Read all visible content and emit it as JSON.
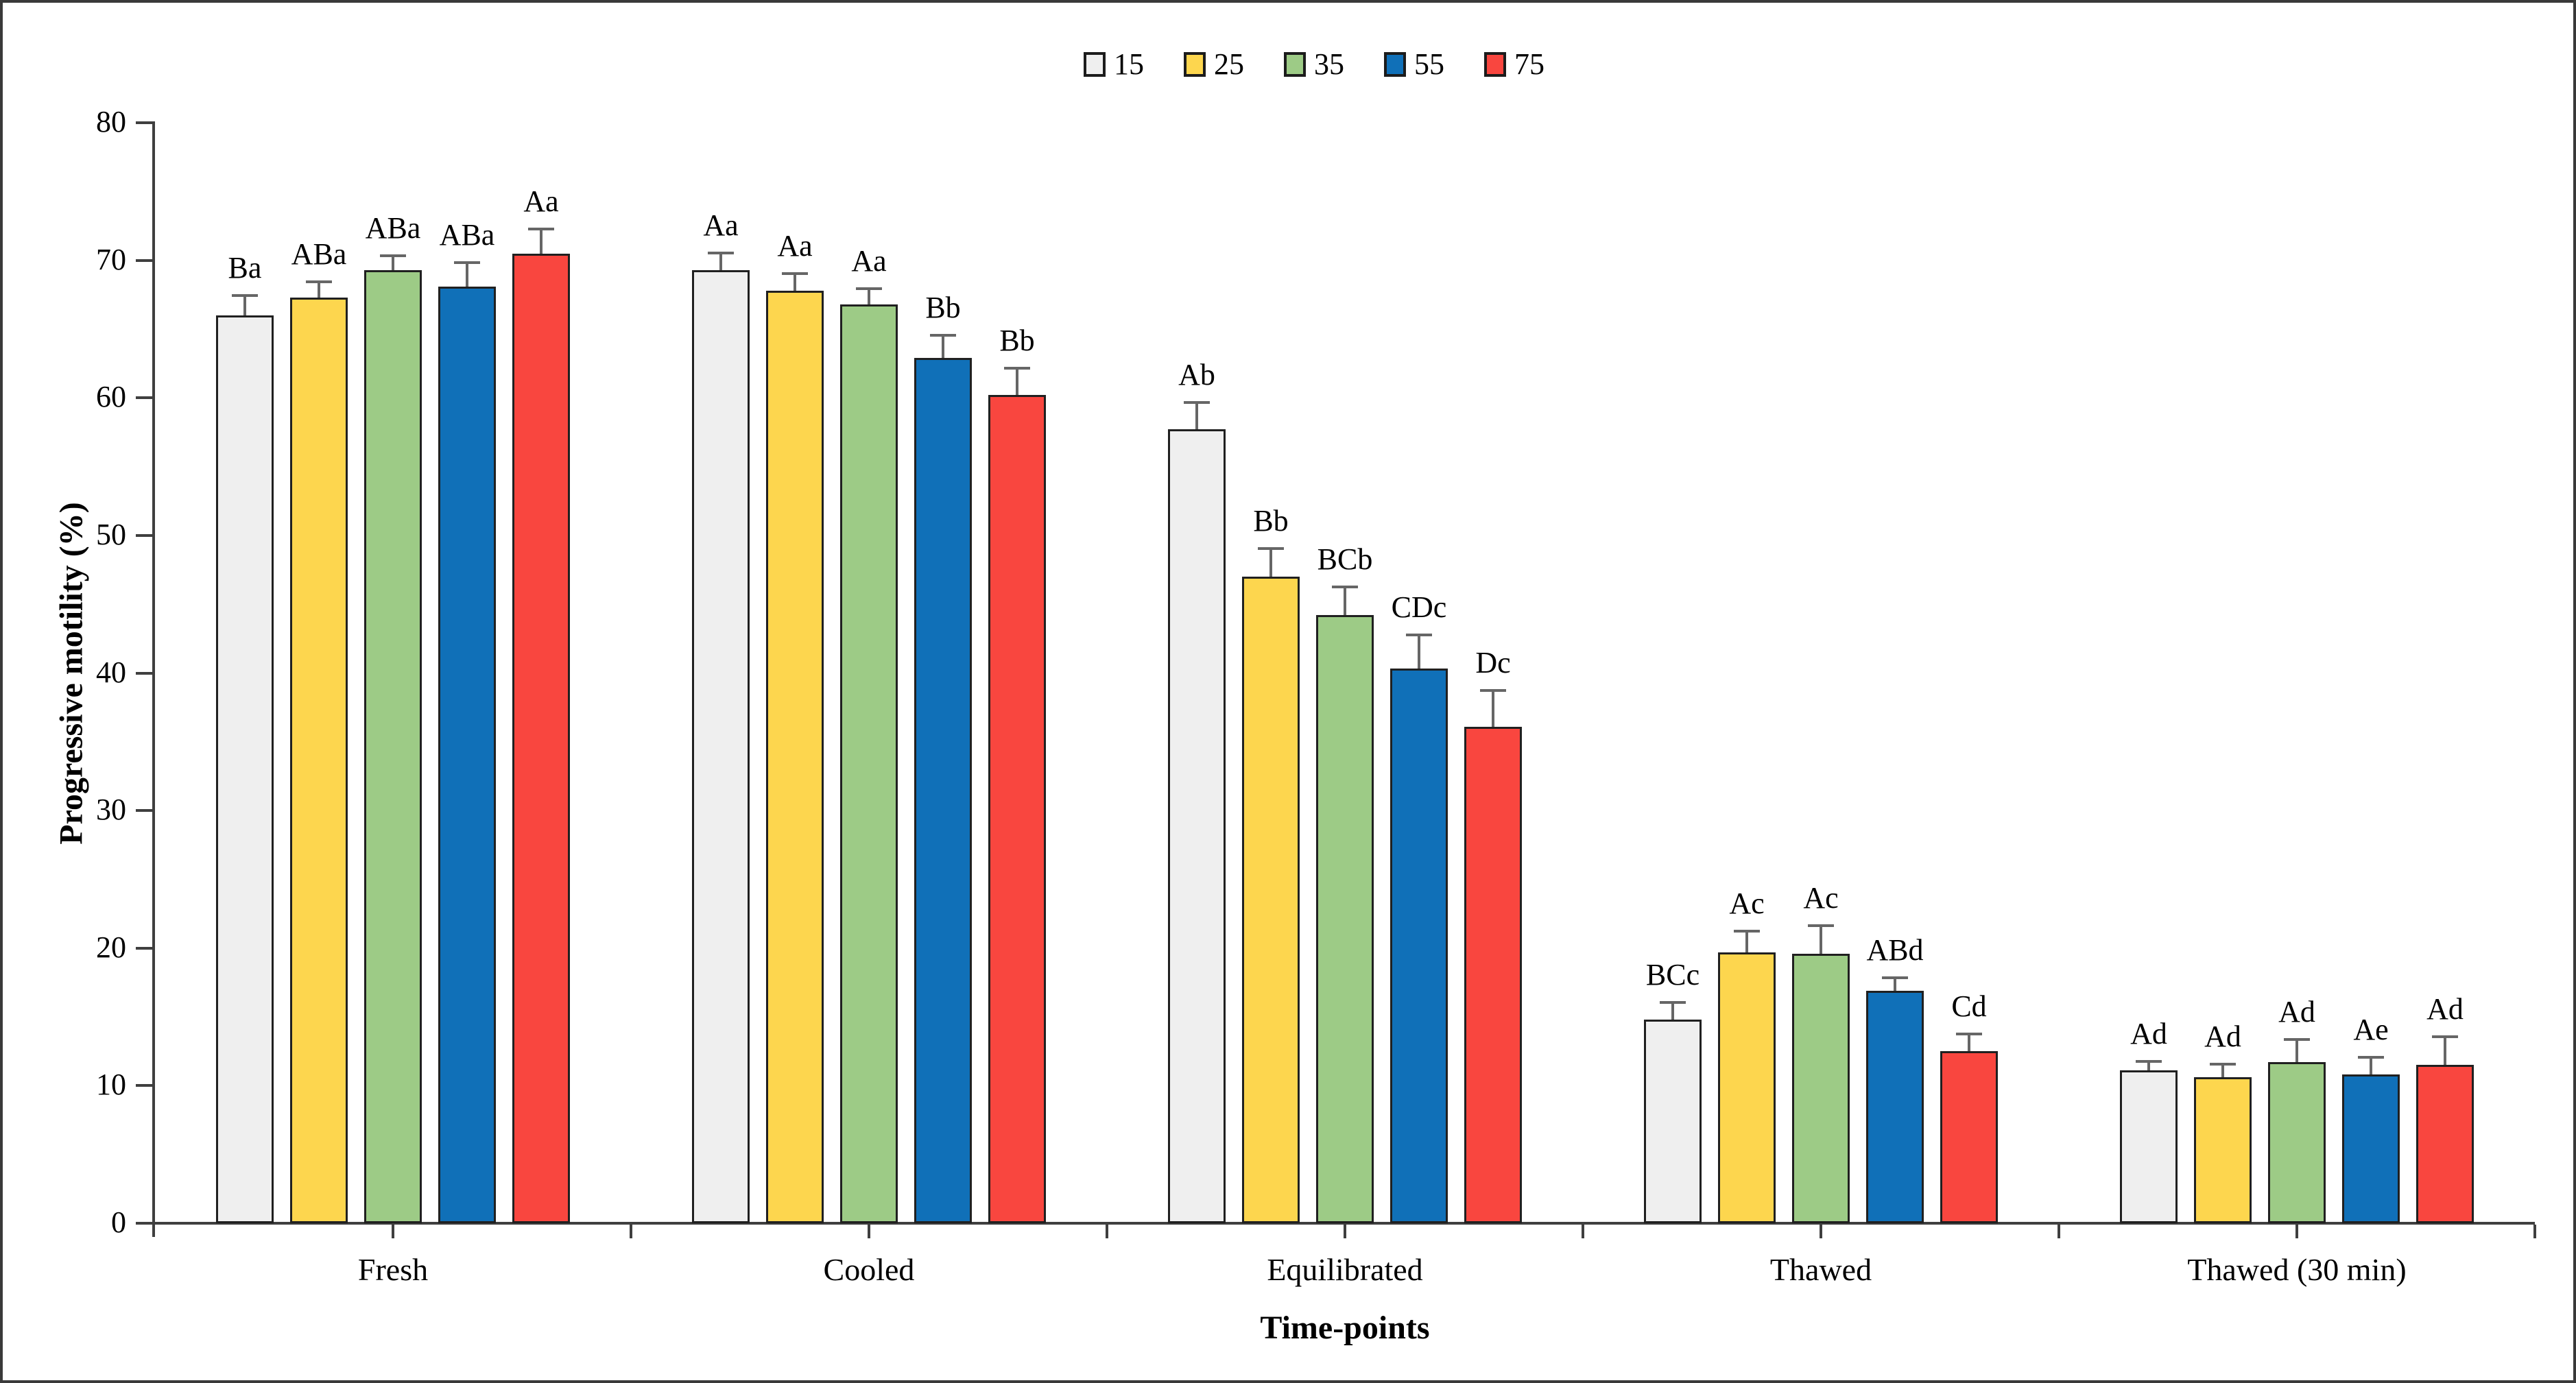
{
  "figure": {
    "border_color": "#3a3a3a",
    "background": "#ffffff"
  },
  "legend": {
    "position": "top-center",
    "items": [
      {
        "label": "15",
        "color": "#EFEFEF"
      },
      {
        "label": "25",
        "color": "#FDD64E"
      },
      {
        "label": "35",
        "color": "#9DCB86"
      },
      {
        "label": "55",
        "color": "#1070B8"
      },
      {
        "label": "75",
        "color": "#F9463F"
      }
    ]
  },
  "chart_data": {
    "type": "bar",
    "title": "",
    "xlabel": "Time-points",
    "ylabel": "Progressive motility (%)",
    "ylim": [
      0,
      80
    ],
    "yticks": [
      0,
      10,
      20,
      30,
      40,
      50,
      60,
      70,
      80
    ],
    "grid": false,
    "error_bars": "plus-direction, gray",
    "categories": [
      "Fresh",
      "Cooled",
      "Equilibrated",
      "Thawed",
      "Thawed (30 min)"
    ],
    "series": [
      {
        "name": "15",
        "color": "#EFEFEF",
        "values": [
          66.0,
          69.3,
          57.7,
          14.8,
          11.1
        ],
        "errors": [
          1.4,
          1.2,
          1.9,
          1.2,
          0.6
        ],
        "labels": [
          "Ba",
          "Aa",
          "Ab",
          "BCc",
          "Ad"
        ]
      },
      {
        "name": "25",
        "color": "#FDD64E",
        "values": [
          67.3,
          67.8,
          47.0,
          19.7,
          10.6
        ],
        "errors": [
          1.1,
          1.2,
          2.0,
          1.5,
          0.9
        ],
        "labels": [
          "ABa",
          "Aa",
          "Bb",
          "Ac",
          "Ad"
        ]
      },
      {
        "name": "35",
        "color": "#9DCB86",
        "values": [
          69.3,
          66.8,
          44.2,
          19.6,
          11.7
        ],
        "errors": [
          1.0,
          1.1,
          2.0,
          2.0,
          1.6
        ],
        "labels": [
          "ABa",
          "Aa",
          "BCb",
          "Ac",
          "Ad"
        ]
      },
      {
        "name": "55",
        "color": "#1070B8",
        "values": [
          68.1,
          62.9,
          40.3,
          16.9,
          10.8
        ],
        "errors": [
          1.7,
          1.6,
          2.4,
          0.9,
          1.2
        ],
        "labels": [
          "ABa",
          "Bb",
          "CDc",
          "ABd",
          "Ae"
        ]
      },
      {
        "name": "75",
        "color": "#F9463F",
        "values": [
          70.5,
          60.2,
          36.1,
          12.5,
          11.5
        ],
        "errors": [
          1.7,
          1.9,
          2.6,
          1.2,
          2.0
        ],
        "labels": [
          "Aa",
          "Bb",
          "Dc",
          "Cd",
          "Ad"
        ]
      }
    ]
  }
}
